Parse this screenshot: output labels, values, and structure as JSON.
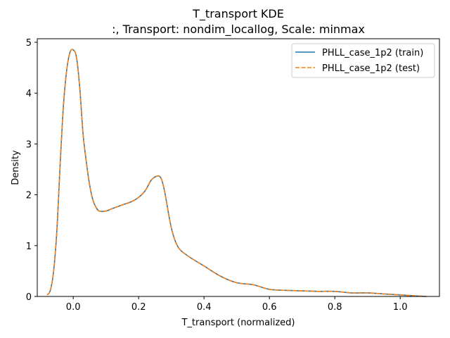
{
  "chart_data": {
    "type": "line",
    "title": "T_transport KDE",
    "subtitle": ":, Transport: nondim_locallog, Scale: minmax",
    "xlabel": "T_transport (normalized)",
    "ylabel": "Density",
    "xlim": [
      -0.11,
      1.12
    ],
    "ylim": [
      0,
      5.07
    ],
    "xticks": [
      0.0,
      0.2,
      0.4,
      0.6,
      0.8,
      1.0
    ],
    "xtick_labels": [
      "0.0",
      "0.2",
      "0.4",
      "0.6",
      "0.8",
      "1.0"
    ],
    "yticks": [
      0,
      1,
      2,
      3,
      4,
      5
    ],
    "ytick_labels": [
      "0",
      "1",
      "2",
      "3",
      "4",
      "5"
    ],
    "grid": false,
    "legend_position": "top-right",
    "x": [
      -0.08,
      -0.07,
      -0.06,
      -0.05,
      -0.04,
      -0.03,
      -0.02,
      -0.01,
      0.0,
      0.01,
      0.02,
      0.03,
      0.04,
      0.05,
      0.06,
      0.07,
      0.08,
      0.1,
      0.12,
      0.15,
      0.18,
      0.2,
      0.22,
      0.24,
      0.26,
      0.27,
      0.28,
      0.3,
      0.32,
      0.35,
      0.4,
      0.45,
      0.5,
      0.55,
      0.6,
      0.65,
      0.7,
      0.75,
      0.8,
      0.85,
      0.9,
      0.95,
      1.0,
      1.05,
      1.08
    ],
    "series": [
      {
        "name": "PHLL_case_1p2 (train)",
        "color": "#1f77b4",
        "style": "solid",
        "values": [
          0.03,
          0.12,
          0.5,
          1.3,
          2.6,
          3.75,
          4.45,
          4.8,
          4.85,
          4.7,
          4.1,
          3.2,
          2.65,
          2.2,
          1.9,
          1.75,
          1.68,
          1.68,
          1.73,
          1.8,
          1.87,
          1.95,
          2.08,
          2.3,
          2.37,
          2.3,
          2.05,
          1.35,
          0.98,
          0.8,
          0.6,
          0.4,
          0.27,
          0.23,
          0.14,
          0.12,
          0.11,
          0.1,
          0.1,
          0.07,
          0.07,
          0.05,
          0.03,
          0.01,
          0.0
        ]
      },
      {
        "name": "PHLL_case_1p2 (test)",
        "color": "#ff7f0e",
        "style": "dashed",
        "values": [
          0.03,
          0.12,
          0.5,
          1.3,
          2.6,
          3.75,
          4.45,
          4.8,
          4.85,
          4.7,
          4.1,
          3.2,
          2.65,
          2.2,
          1.9,
          1.75,
          1.68,
          1.68,
          1.73,
          1.8,
          1.87,
          1.95,
          2.08,
          2.3,
          2.37,
          2.3,
          2.05,
          1.35,
          0.98,
          0.8,
          0.6,
          0.4,
          0.27,
          0.23,
          0.14,
          0.12,
          0.11,
          0.1,
          0.1,
          0.07,
          0.07,
          0.05,
          0.03,
          0.01,
          0.0
        ]
      }
    ]
  }
}
